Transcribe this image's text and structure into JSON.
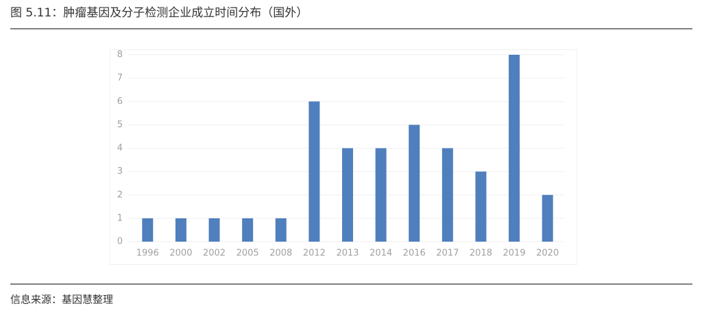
{
  "chart_data": {
    "type": "bar",
    "title": "图 5.11：肿瘤基因及分子检测企业成立时间分布（国外）",
    "source": "信息来源：基因慧整理",
    "categories": [
      "1996",
      "2000",
      "2002",
      "2005",
      "2008",
      "2012",
      "2013",
      "2014",
      "2016",
      "2017",
      "2018",
      "2019",
      "2020"
    ],
    "values": [
      1,
      1,
      1,
      1,
      1,
      6,
      4,
      4,
      5,
      4,
      3,
      8,
      2
    ],
    "color": "#4f7fbd",
    "ylim": [
      0,
      8
    ],
    "yticks": [
      0,
      1,
      2,
      3,
      4,
      5,
      6,
      7,
      8
    ],
    "grid": true
  }
}
